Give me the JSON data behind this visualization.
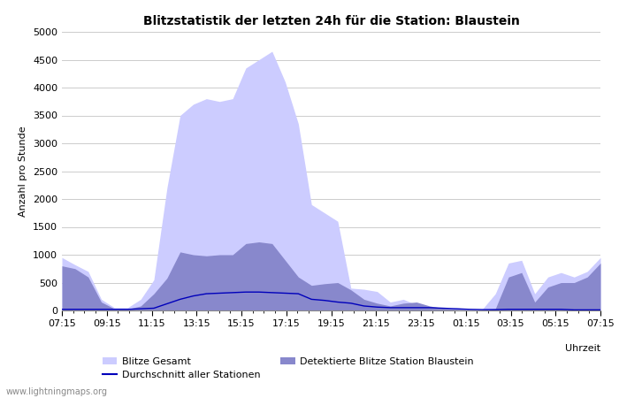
{
  "title": "Blitzstatistik der letzten 24h für die Station: Blaustein",
  "xlabel": "Uhrzeit",
  "ylabel": "Anzahl pro Stunde",
  "ylim": [
    0,
    5000
  ],
  "yticks": [
    0,
    500,
    1000,
    1500,
    2000,
    2500,
    3000,
    3500,
    4000,
    4500,
    5000
  ],
  "x_labels": [
    "07:15",
    "09:15",
    "11:15",
    "13:15",
    "15:15",
    "17:15",
    "19:15",
    "21:15",
    "23:15",
    "01:15",
    "03:15",
    "05:15",
    "07:15"
  ],
  "gesamt": [
    950,
    820,
    700,
    200,
    50,
    50,
    200,
    550,
    2200,
    3500,
    3700,
    3800,
    3750,
    3800,
    4350,
    4500,
    4650,
    4100,
    3350,
    1900,
    1750,
    1600,
    400,
    380,
    340,
    150,
    200,
    100,
    50,
    30,
    50,
    20,
    20,
    300,
    850,
    900,
    300,
    600,
    680,
    600,
    700,
    950
  ],
  "detektiert": [
    800,
    750,
    600,
    150,
    30,
    25,
    80,
    300,
    580,
    1050,
    1000,
    980,
    1000,
    1000,
    1200,
    1230,
    1200,
    900,
    600,
    450,
    480,
    500,
    370,
    200,
    130,
    80,
    130,
    150,
    80,
    40,
    20,
    10,
    8,
    30,
    600,
    680,
    150,
    420,
    500,
    500,
    600,
    850
  ],
  "durchschnitt": [
    20,
    20,
    20,
    20,
    20,
    20,
    30,
    40,
    120,
    200,
    260,
    300,
    310,
    320,
    330,
    330,
    320,
    310,
    300,
    200,
    180,
    150,
    130,
    80,
    60,
    50,
    50,
    50,
    50,
    40,
    30,
    20,
    15,
    15,
    20,
    20,
    20,
    20,
    20,
    10,
    10,
    10
  ],
  "color_gesamt": "#ccccff",
  "color_detektiert": "#8888cc",
  "color_durchschnitt": "#0000bb",
  "color_background": "#ffffff",
  "color_grid": "#cccccc",
  "watermark": "www.lightningmaps.org",
  "legend_gesamt": "Blitze Gesamt",
  "legend_detektiert": "Detektierte Blitze Station Blaustein",
  "legend_durchschnitt": "Durchschnitt aller Stationen"
}
